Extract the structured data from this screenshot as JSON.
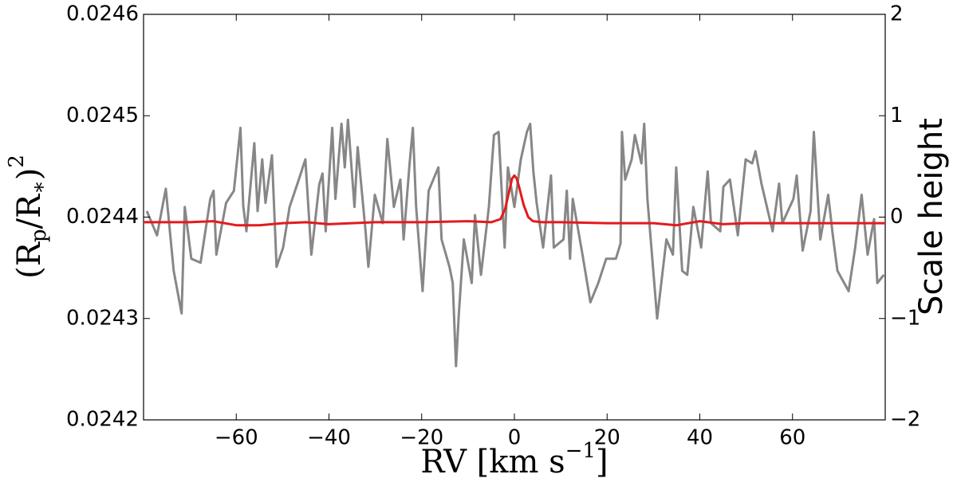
{
  "chart_data": {
    "type": "line",
    "ylabel": [
      "(R",
      "p",
      "/R",
      "∗",
      ")",
      "2"
    ],
    "xlabel": [
      "RV [km s",
      "−1",
      "]"
    ],
    "y2label": "Scale height",
    "xlim": [
      -80,
      80
    ],
    "xticks": [
      {
        "value": -60,
        "label": "−60"
      },
      {
        "value": -40,
        "label": "−40"
      },
      {
        "value": -20,
        "label": "−20"
      },
      0,
      20,
      40,
      60
    ],
    "ylim": [
      0.0242,
      0.0246
    ],
    "yticks": [
      0.0242,
      0.0243,
      0.0244,
      0.0245,
      0.0246
    ],
    "y2lim": [
      -2,
      2
    ],
    "y2ticks": [
      {
        "value": -2,
        "label": "−2"
      },
      {
        "value": -1,
        "label": "−1"
      },
      0,
      1,
      2
    ],
    "series": [
      {
        "color": "#878787",
        "x": [
          -79.3,
          -77.1,
          -75.2,
          -73.5,
          -71.8,
          -71.1,
          -69.7,
          -67.7,
          -65.6,
          -64.9,
          -64.3,
          -62.2,
          -60.5,
          -59.1,
          -58.5,
          -57.8,
          -56.1,
          -55.4,
          -54.4,
          -53.7,
          -52.3,
          -51.3,
          -49.9,
          -48.5,
          -46.5,
          -45.1,
          -43.8,
          -42.1,
          -41.4,
          -40.7,
          -39.3,
          -38.6,
          -37.3,
          -36.6,
          -35.9,
          -34.5,
          -33.8,
          -32.1,
          -31.5,
          -30.1,
          -28.4,
          -27.4,
          -26.0,
          -24.6,
          -23.9,
          -22.6,
          -21.9,
          -21.2,
          -19.8,
          -18.5,
          -16.4,
          -15.7,
          -14.0,
          -13.3,
          -12.6,
          -12.0,
          -10.9,
          -9.2,
          -8.5,
          -7.2,
          -5.5,
          -4.4,
          -3.4,
          -2.1,
          -1.4,
          0.0,
          1.4,
          2.7,
          3.4,
          4.1,
          4.8,
          6.2,
          7.9,
          8.5,
          10.6,
          11.3,
          12.0,
          12.6,
          14.7,
          16.4,
          18.1,
          19.8,
          21.9,
          22.9,
          23.2,
          23.9,
          25.3,
          26.0,
          27.4,
          28.0,
          28.7,
          30.1,
          30.8,
          32.8,
          34.2,
          34.9,
          36.2,
          37.3,
          38.6,
          40.3,
          41.7,
          42.4,
          44.4,
          45.1,
          46.5,
          48.2,
          49.9,
          51.3,
          52.0,
          53.3,
          55.7,
          57.1,
          57.8,
          60.2,
          60.9,
          62.2,
          63.9,
          64.6,
          66.0,
          67.7,
          68.7,
          69.7,
          72.1,
          73.5,
          74.9,
          76.2,
          77.6,
          78.3,
          79.7
        ],
        "values": [
          0.024406,
          0.024382,
          0.024428,
          0.024347,
          0.024305,
          0.02441,
          0.024359,
          0.024355,
          0.024418,
          0.024426,
          0.024363,
          0.024414,
          0.024426,
          0.024488,
          0.024411,
          0.024386,
          0.024473,
          0.024406,
          0.024457,
          0.024414,
          0.024461,
          0.024351,
          0.02437,
          0.02441,
          0.024437,
          0.024457,
          0.024363,
          0.024432,
          0.024443,
          0.024386,
          0.024488,
          0.024418,
          0.024492,
          0.024449,
          0.024496,
          0.02441,
          0.024469,
          0.024386,
          0.024351,
          0.024422,
          0.024394,
          0.024477,
          0.02441,
          0.024437,
          0.024378,
          0.024453,
          0.024488,
          0.02441,
          0.024327,
          0.024426,
          0.024449,
          0.024378,
          0.024351,
          0.024335,
          0.024253,
          0.024304,
          0.024378,
          0.024335,
          0.024402,
          0.024343,
          0.02441,
          0.024481,
          0.024484,
          0.02437,
          0.024449,
          0.02441,
          0.024457,
          0.024484,
          0.024492,
          0.024445,
          0.024414,
          0.02437,
          0.024441,
          0.02437,
          0.024378,
          0.024426,
          0.024359,
          0.024418,
          0.024363,
          0.024316,
          0.024335,
          0.024359,
          0.024359,
          0.024374,
          0.024484,
          0.024437,
          0.024457,
          0.024481,
          0.024453,
          0.024492,
          0.024418,
          0.024339,
          0.0243,
          0.024378,
          0.024363,
          0.024449,
          0.024347,
          0.024343,
          0.02441,
          0.02437,
          0.024445,
          0.024394,
          0.024386,
          0.02443,
          0.024437,
          0.024382,
          0.024457,
          0.024453,
          0.024465,
          0.024433,
          0.024386,
          0.024433,
          0.024394,
          0.024418,
          0.024441,
          0.024367,
          0.024406,
          0.024484,
          0.024378,
          0.024422,
          0.024382,
          0.024347,
          0.024327,
          0.024369,
          0.024422,
          0.024363,
          0.024398,
          0.024335,
          0.024343
        ]
      },
      {
        "color": "#e41a1c",
        "axis": "y2",
        "x": [
          -80,
          -70,
          -65,
          -60,
          -55,
          -50,
          -45,
          -40,
          -30,
          -20,
          -10,
          -5,
          -3,
          -2,
          -1,
          -0.5,
          0,
          0.5,
          1,
          2,
          3,
          4,
          6,
          10,
          20,
          30,
          35,
          40,
          45,
          50,
          60,
          70,
          80
        ],
        "values": [
          -0.05,
          -0.05,
          -0.04,
          -0.08,
          -0.08,
          -0.06,
          -0.05,
          -0.07,
          -0.05,
          -0.05,
          -0.04,
          -0.05,
          -0.02,
          0.08,
          0.28,
          0.38,
          0.41,
          0.38,
          0.3,
          0.12,
          0.0,
          -0.04,
          -0.05,
          -0.05,
          -0.06,
          -0.06,
          -0.08,
          -0.04,
          -0.07,
          -0.06,
          -0.06,
          -0.06,
          -0.06
        ]
      }
    ]
  }
}
